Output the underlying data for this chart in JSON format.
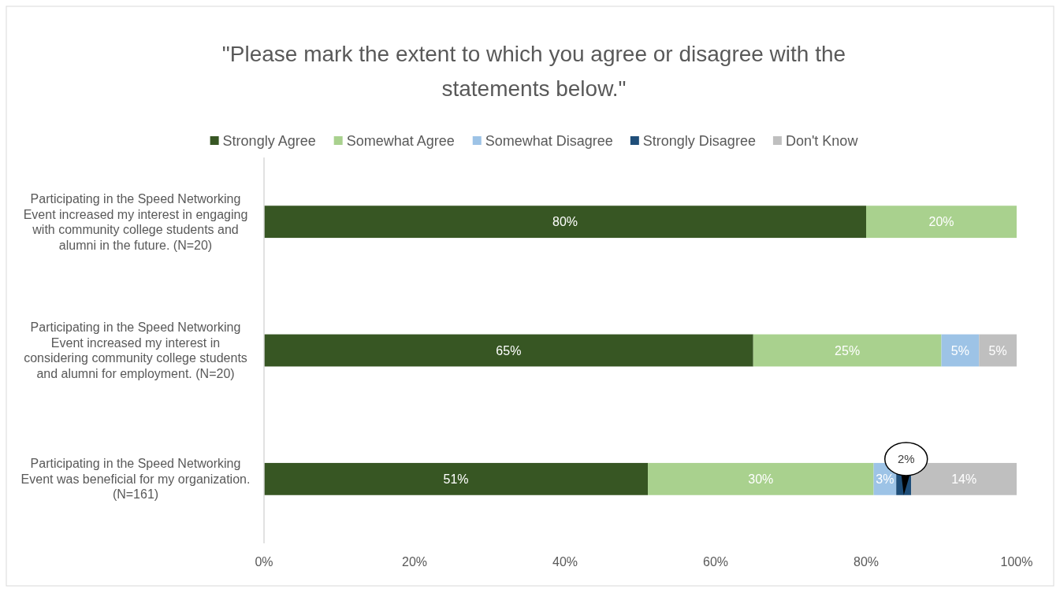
{
  "chart_data": {
    "type": "bar",
    "orientation": "horizontal",
    "stacked": true,
    "title": "\"Please mark the extent to which you agree or disagree with the statements below.\"",
    "categories": [
      "Participating in the Speed Networking Event increased my interest in engaging with community college students and alumni in the future. (N=20)",
      "Participating in the Speed Networking Event increased my interest in considering community college students and alumni for employment. (N=20)",
      "Participating in the Speed Networking Event was beneficial for my organization. (N=161)"
    ],
    "series": [
      {
        "name": "Strongly Agree",
        "color": "#375623",
        "values": [
          80,
          65,
          51
        ],
        "value_labels": [
          "80%",
          "65%",
          "51%"
        ]
      },
      {
        "name": "Somewhat Agree",
        "color": "#a9d18e",
        "values": [
          20,
          25,
          30
        ],
        "value_labels": [
          "20%",
          "25%",
          "30%"
        ]
      },
      {
        "name": "Somewhat Disagree",
        "color": "#9dc3e6",
        "values": [
          0,
          5,
          3
        ],
        "value_labels": [
          null,
          "5%",
          "3%"
        ]
      },
      {
        "name": "Strongly Disagree",
        "color": "#1f4e79",
        "values": [
          0,
          0,
          2
        ],
        "value_labels": [
          null,
          null,
          "2%"
        ]
      },
      {
        "name": "Don't Know",
        "color": "#bfbfbf",
        "values": [
          0,
          5,
          14
        ],
        "value_labels": [
          null,
          "5%",
          "14%"
        ]
      }
    ],
    "xlim": [
      0,
      100
    ],
    "xticks": [
      {
        "value": 0,
        "label": "0%"
      },
      {
        "value": 20,
        "label": "20%"
      },
      {
        "value": 40,
        "label": "40%"
      },
      {
        "value": 60,
        "label": "60%"
      },
      {
        "value": 80,
        "label": "80%"
      },
      {
        "value": 100,
        "label": "100%"
      }
    ],
    "grid": false,
    "legend": "top"
  }
}
